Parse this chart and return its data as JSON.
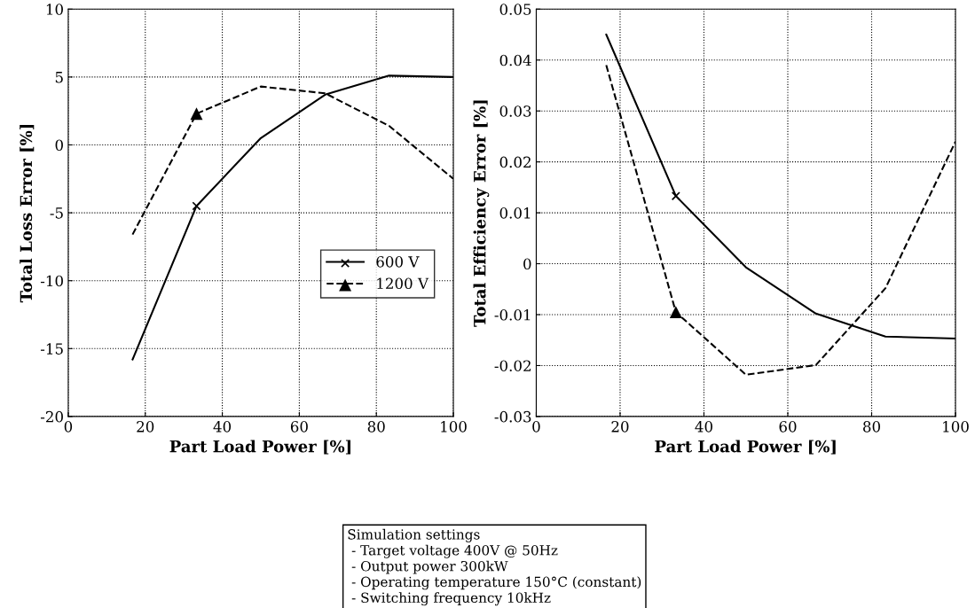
{
  "chart_data": [
    {
      "type": "line",
      "xlabel": "Part Load Power [%]",
      "ylabel": "Total Loss Error [%]",
      "x": [
        16.7,
        33.3,
        50,
        66.7,
        83.3,
        100
      ],
      "series": [
        {
          "name": "600 V",
          "color": "#000000",
          "line_style": "solid",
          "marker": "none",
          "values": [
            -15.8,
            -4.5,
            0.5,
            3.7,
            5.1,
            5.0
          ]
        },
        {
          "type": "scatter",
          "color": "#000000",
          "marker": "cross",
          "values": [
            null,
            -4.5,
            null,
            null,
            null,
            null
          ]
        },
        {
          "name": "1200 V",
          "color": "#000000",
          "line_style": "dashed",
          "marker": "none",
          "values": [
            -6.6,
            2.3,
            4.3,
            3.8,
            1.4,
            -2.5
          ]
        },
        {
          "type": "scatter",
          "color": "#000000",
          "marker": "triangle",
          "values": [
            null,
            2.3,
            null,
            null,
            null,
            null
          ]
        }
      ],
      "xlim": [
        0,
        100
      ],
      "xticks": [
        0,
        20,
        40,
        60,
        80,
        100
      ],
      "ylim": [
        -20,
        10
      ],
      "yticks": [
        -20,
        -15,
        -10,
        -5,
        0,
        5,
        10
      ],
      "grid": true,
      "legend": "right",
      "annotations": [
        "Simulation settings",
        " - Target voltage 400V @ 50Hz",
        " - Output power 300kW",
        " - Operating temperature 150°C (constant)",
        " - Switching frequency 10kHz"
      ]
    },
    {
      "type": "line",
      "xlabel": "Part Load Power [%]",
      "ylabel": "Total Efficiency Error [%]",
      "x": [
        16.7,
        33.3,
        50,
        66.7,
        83.3,
        100
      ],
      "series": [
        {
          "color": "#000000",
          "line_style": "solid",
          "marker": "none",
          "values": [
            0.045,
            0.0133,
            -0.0007,
            -0.0098,
            -0.0143,
            -0.0147
          ]
        },
        {
          "type": "scatter",
          "color": "#000000",
          "marker": "cross",
          "values": [
            null,
            0.0133,
            null,
            null,
            null,
            null
          ]
        },
        {
          "color": "#000000",
          "line_style": "dashed",
          "marker": "none",
          "values": [
            0.039,
            -0.0095,
            -0.0218,
            -0.0199,
            -0.0048,
            0.024
          ]
        },
        {
          "type": "scatter",
          "color": "#000000",
          "marker": "triangle",
          "values": [
            null,
            -0.0095,
            null,
            null,
            null,
            null
          ]
        }
      ],
      "xlim": [
        0,
        100
      ],
      "xticks": [
        0,
        20,
        40,
        60,
        80,
        100
      ],
      "ylim": [
        -0.03,
        0.05
      ],
      "yticks": [
        -0.03,
        -0.02,
        -0.01,
        0,
        0.01,
        0.02,
        0.03,
        0.04,
        0.05
      ],
      "grid": true,
      "legend": false
    }
  ]
}
